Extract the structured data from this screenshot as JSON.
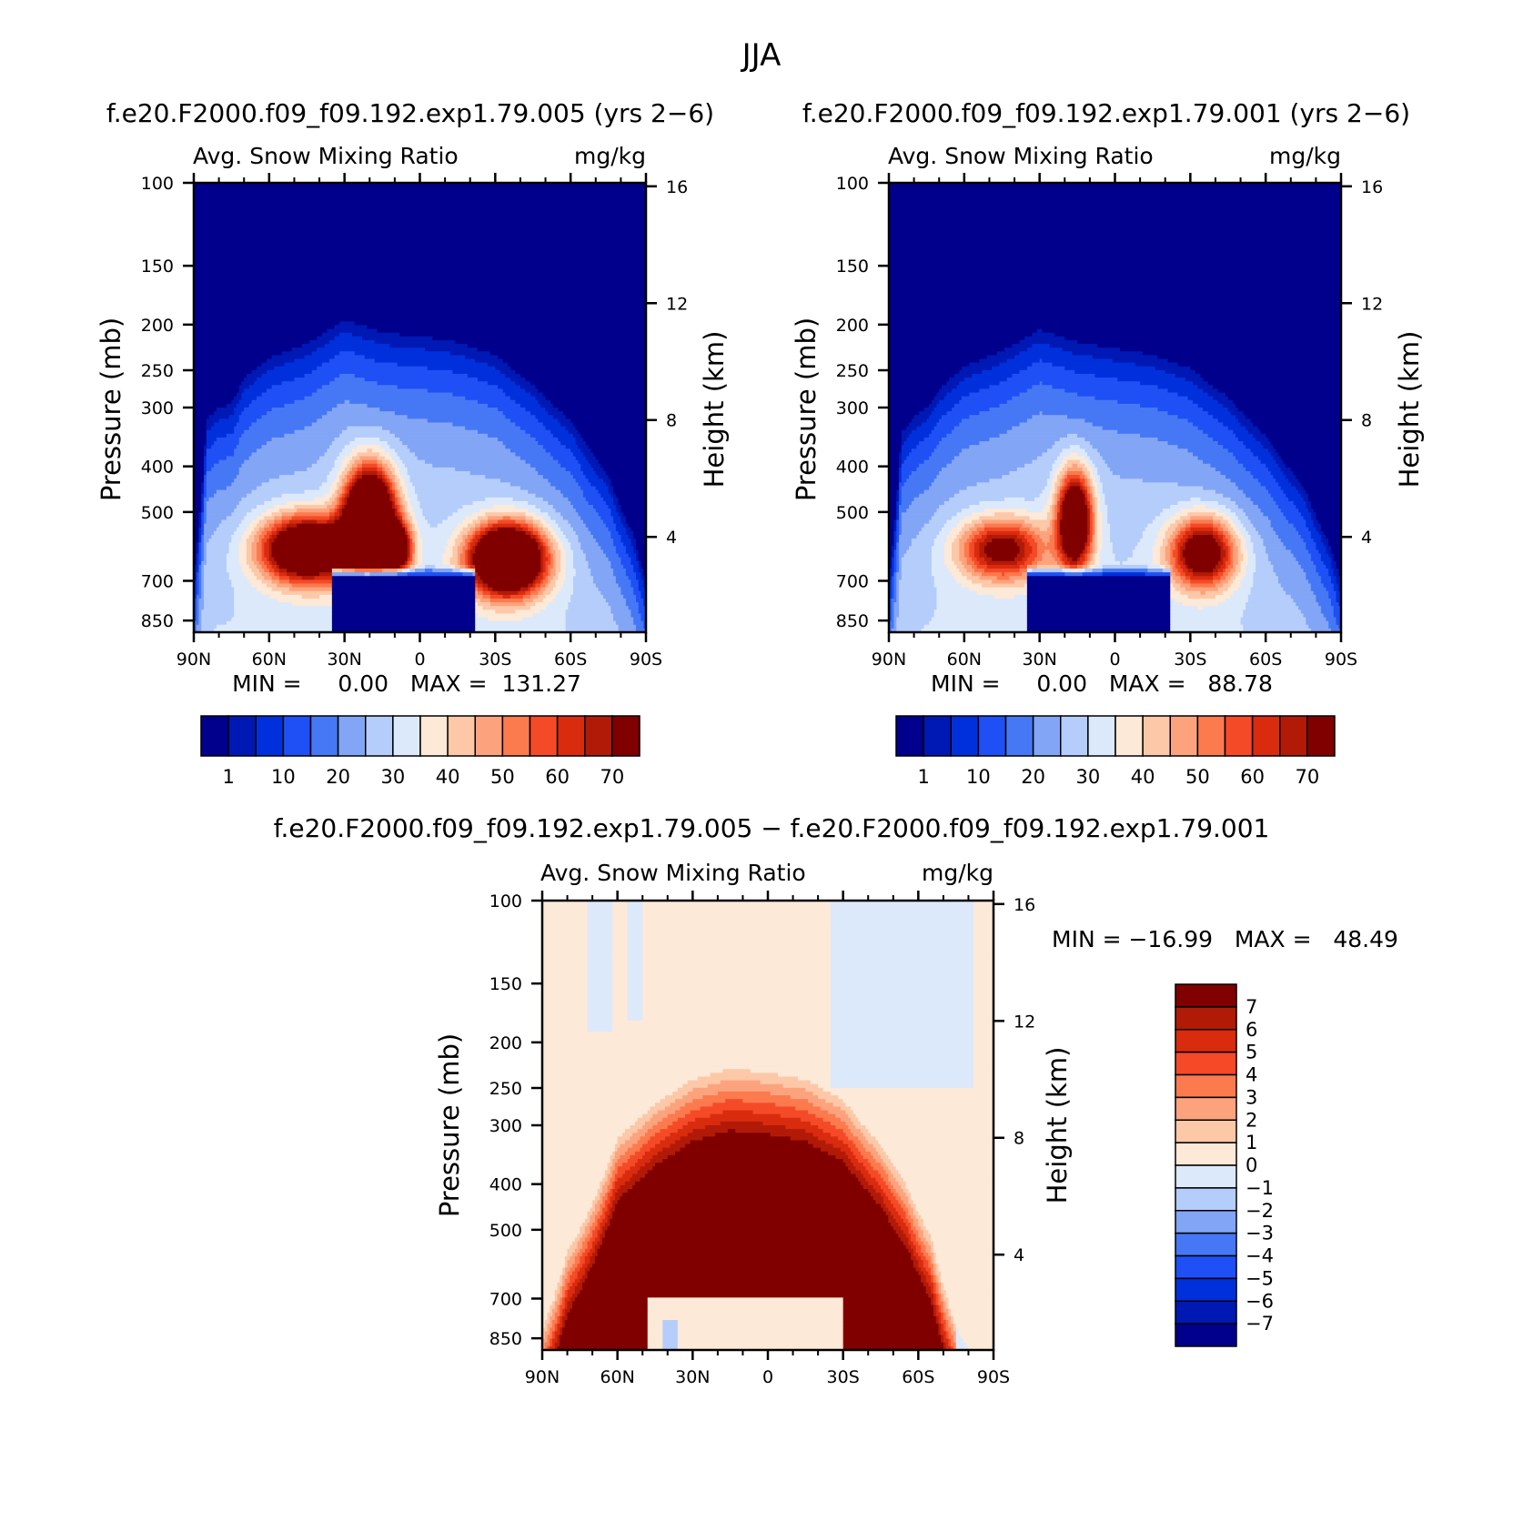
{
  "figure": {
    "title": "JJA",
    "diff_title": "f.e20.F2000.f09_f09.192.exp1.79.005 − f.e20.F2000.f09_f09.192.exp1.79.001"
  },
  "palettes": {
    "abs": [
      "#00008c",
      "#0018b4",
      "#0030dc",
      "#1e50f5",
      "#4678f5",
      "#82a5f5",
      "#b4cdfa",
      "#dce9fb",
      "#fde9d7",
      "#fcc8a8",
      "#fca37e",
      "#fb7a4e",
      "#f54a28",
      "#d92b0e",
      "#b21a08",
      "#800000"
    ],
    "diff": [
      "#800000",
      "#b21a08",
      "#d92b0e",
      "#f54a28",
      "#fb7a4e",
      "#fca37e",
      "#fcc8a8",
      "#fde9d7",
      "#dce9fb",
      "#b4cdfa",
      "#82a5f5",
      "#4678f5",
      "#1e50f5",
      "#0030dc",
      "#0018b4",
      "#00008c"
    ]
  },
  "chart_data": [
    {
      "type": "contour",
      "panel": "case1",
      "case": "f.e20.F2000.f09_f09.192.exp1.79.005 (yrs 2−6)",
      "variable": "Avg. Snow Mixing Ratio",
      "units": "mg/kg",
      "xlabel": "",
      "ylabel": "Pressure (mb)",
      "ylabel_right": "Height (km)",
      "x_ticks": [
        "90N",
        "60N",
        "30N",
        "0",
        "30S",
        "60S",
        "90S"
      ],
      "p_ticks": [
        100,
        150,
        200,
        250,
        300,
        400,
        500,
        700,
        850
      ],
      "z_ticks": [
        16,
        12,
        8,
        4
      ],
      "stats_label": "MIN =     0.00   MAX =  131.27",
      "min": 0.0,
      "max": 131.27,
      "colorbar_labels": [
        "1",
        "10",
        "20",
        "30",
        "40",
        "50",
        "60",
        "70"
      ],
      "field": {
        "dome": [
          [
            -90,
            690
          ],
          [
            -85,
            320
          ],
          [
            -80,
            300
          ],
          [
            -75,
            295
          ],
          [
            -70,
            260
          ],
          [
            -60,
            235
          ],
          [
            -45,
            220
          ],
          [
            -30,
            195
          ],
          [
            -15,
            208
          ],
          [
            0,
            212
          ],
          [
            15,
            218
          ],
          [
            30,
            232
          ],
          [
            45,
            268
          ],
          [
            60,
            320
          ],
          [
            75,
            420
          ],
          [
            85,
            560
          ],
          [
            90,
            700
          ]
        ],
        "blobs": [
          {
            "lat": -45,
            "p": 600,
            "rlat": 18,
            "logrp": 0.16,
            "amp": 75
          },
          {
            "lat": -20,
            "p": 530,
            "rlat": 10,
            "logrp": 0.26,
            "amp": 105
          },
          {
            "lat": -9,
            "p": 600,
            "rlat": 6,
            "logrp": 0.12,
            "amp": 55
          },
          {
            "lat": 35,
            "p": 630,
            "rlat": 15,
            "logrp": 0.17,
            "amp": 95
          }
        ]
      }
    },
    {
      "type": "contour",
      "panel": "case2",
      "case": "f.e20.F2000.f09_f09.192.exp1.79.001 (yrs 2−6)",
      "variable": "Avg. Snow Mixing Ratio",
      "units": "mg/kg",
      "xlabel": "",
      "ylabel": "Pressure (mb)",
      "ylabel_right": "Height (km)",
      "x_ticks": [
        "90N",
        "60N",
        "30N",
        "0",
        "30S",
        "60S",
        "90S"
      ],
      "p_ticks": [
        100,
        150,
        200,
        250,
        300,
        400,
        500,
        700,
        850
      ],
      "z_ticks": [
        16,
        12,
        8,
        4
      ],
      "stats_label": "MIN =     0.00   MAX =   88.78",
      "min": 0.0,
      "max": 88.78,
      "colorbar_labels": [
        "1",
        "10",
        "20",
        "30",
        "40",
        "50",
        "60",
        "70"
      ],
      "field": {
        "dome": [
          [
            -90,
            695
          ],
          [
            -85,
            340
          ],
          [
            -80,
            315
          ],
          [
            -75,
            300
          ],
          [
            -70,
            275
          ],
          [
            -60,
            245
          ],
          [
            -45,
            228
          ],
          [
            -30,
            205
          ],
          [
            -15,
            218
          ],
          [
            0,
            225
          ],
          [
            15,
            232
          ],
          [
            30,
            248
          ],
          [
            45,
            285
          ],
          [
            60,
            345
          ],
          [
            75,
            440
          ],
          [
            85,
            580
          ],
          [
            90,
            700
          ]
        ],
        "blobs": [
          {
            "lat": -45,
            "p": 600,
            "rlat": 17,
            "logrp": 0.15,
            "amp": 48
          },
          {
            "lat": -16,
            "p": 520,
            "rlat": 7,
            "logrp": 0.24,
            "amp": 72
          },
          {
            "lat": 35,
            "p": 610,
            "rlat": 13,
            "logrp": 0.17,
            "amp": 58
          }
        ]
      }
    },
    {
      "type": "contour",
      "panel": "difference",
      "variable": "Avg. Snow Mixing Ratio",
      "units": "mg/kg",
      "xlabel": "",
      "ylabel": "Pressure (mb)",
      "ylabel_right": "Height (km)",
      "x_ticks": [
        "90N",
        "60N",
        "30N",
        "0",
        "30S",
        "60S",
        "90S"
      ],
      "p_ticks": [
        100,
        150,
        200,
        250,
        300,
        400,
        500,
        700,
        850
      ],
      "z_ticks": [
        16,
        12,
        8,
        4
      ],
      "stats_label": "MIN = −16.99   MAX =   48.49",
      "min": -16.99,
      "max": 48.49,
      "colorbar_labels": [
        "7",
        "6",
        "5",
        "4",
        "3",
        "2",
        "1",
        "0",
        "−1",
        "−2",
        "−3",
        "−4",
        "−5",
        "−6",
        "−7"
      ],
      "field": {
        "dome": [
          [
            -90,
            820
          ],
          [
            -80,
            560
          ],
          [
            -70,
            440
          ],
          [
            -60,
            320
          ],
          [
            -45,
            270
          ],
          [
            -30,
            240
          ],
          [
            -15,
            228
          ],
          [
            0,
            232
          ],
          [
            15,
            240
          ],
          [
            30,
            265
          ],
          [
            45,
            330
          ],
          [
            55,
            400
          ],
          [
            65,
            520
          ],
          [
            75,
            800
          ],
          [
            80,
            900
          ]
        ]
      }
    }
  ]
}
